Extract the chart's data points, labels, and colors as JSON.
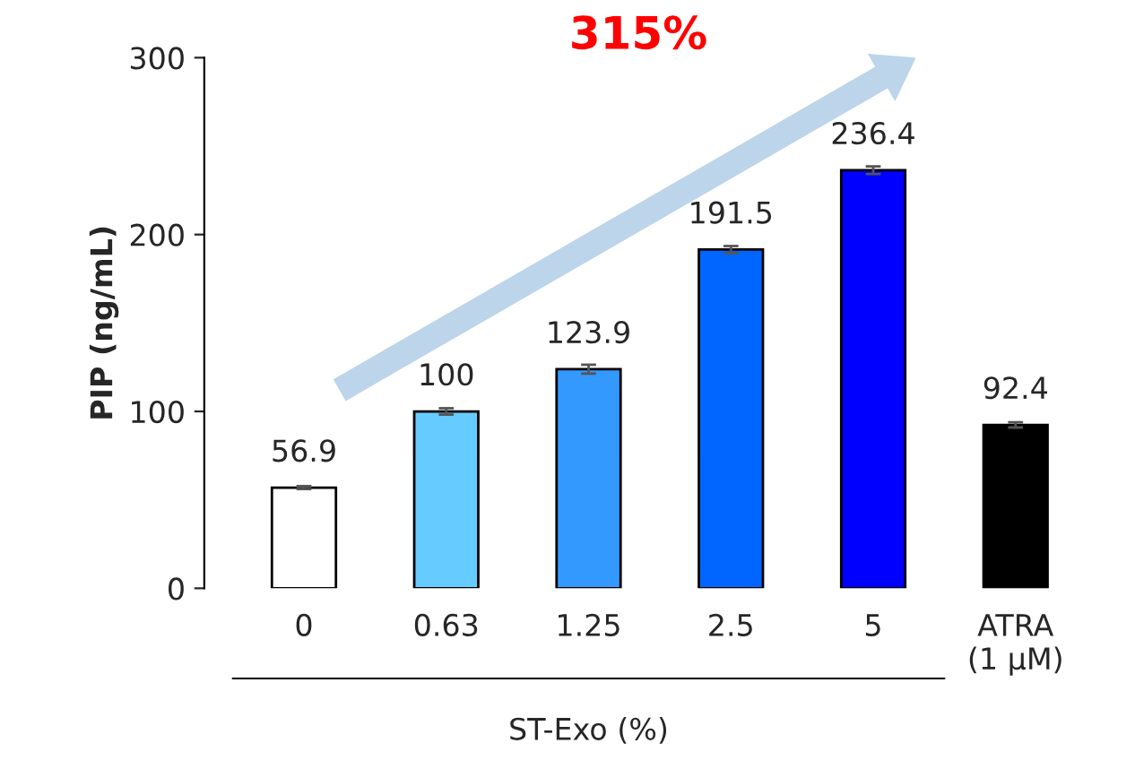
{
  "chart_data": {
    "type": "bar",
    "categories": [
      "0",
      "0.63",
      "1.25",
      "2.5",
      "5",
      "ATRA\n(1 µM)"
    ],
    "values": [
      56.9,
      100,
      123.9,
      191.5,
      236.4,
      92.4
    ],
    "colors": [
      "#ffffff",
      "#66ccff",
      "#3399ff",
      "#0066ff",
      "#0000ff",
      "#000000"
    ],
    "errors": [
      0.8,
      1.8,
      2.5,
      2.0,
      2.2,
      1.5
    ],
    "ylabel": "PIP (ng/mL)",
    "xlabel": "ST-Exo (%)",
    "annotations": [
      "315%"
    ],
    "ylim": [
      0,
      300
    ],
    "yticks": [
      0,
      100,
      200,
      300
    ],
    "data_labels": true,
    "grid": false,
    "legend": false
  }
}
